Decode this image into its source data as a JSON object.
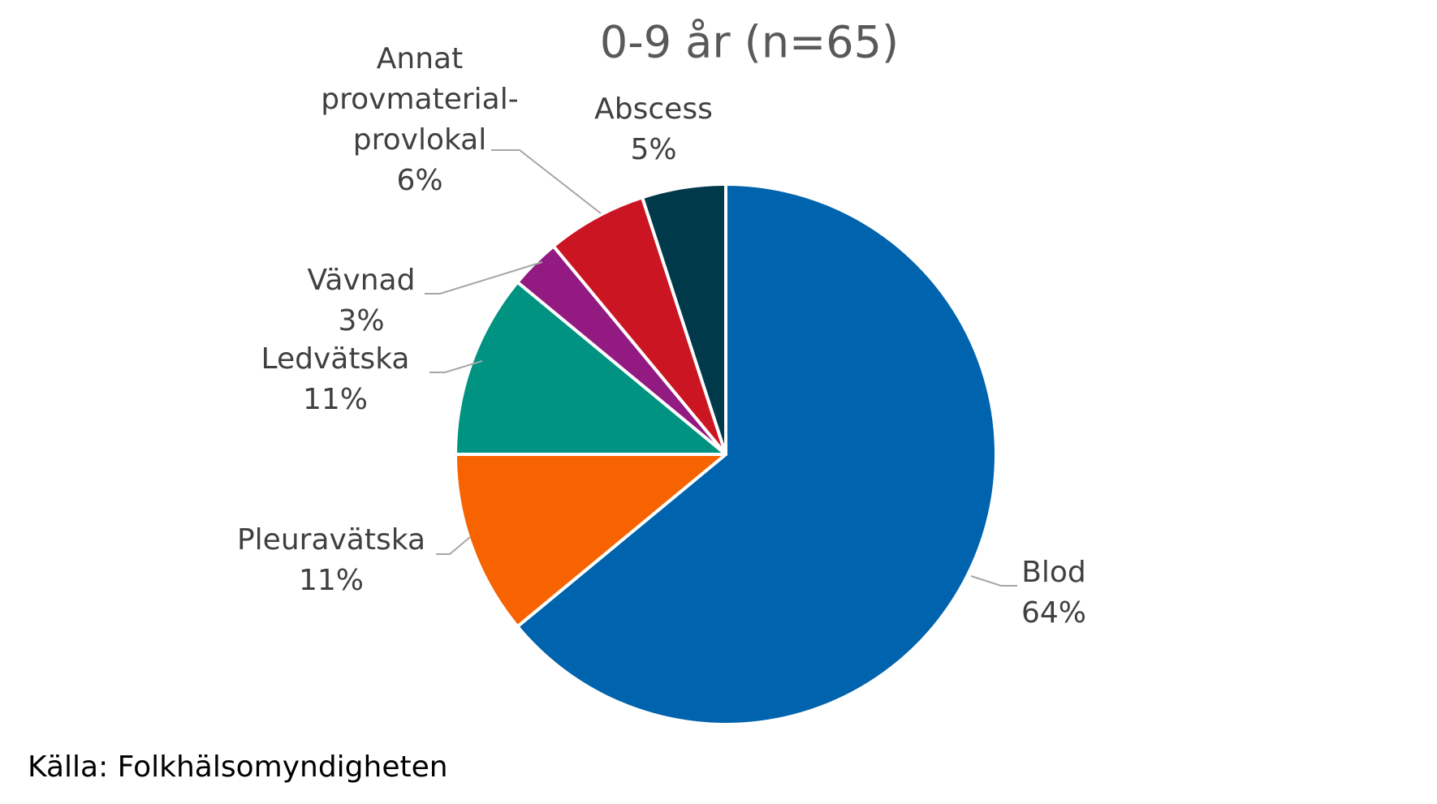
{
  "chart_data": {
    "type": "pie",
    "title": "0-9 år (n=65)",
    "categories": [
      "Blod",
      "Pleuravätska",
      "Ledvätska",
      "Vävnad",
      "Annat provmaterial-provlokal",
      "Abscess"
    ],
    "values": [
      64,
      11,
      11,
      3,
      6,
      5
    ],
    "value_labels": [
      "64%",
      "11%",
      "11%",
      "3%",
      "6%",
      "5%"
    ],
    "colors": [
      "#0063ad",
      "#f76300",
      "#009382",
      "#921a80",
      "#cc1523",
      "#003a4a"
    ],
    "source": "Källa: Folkhälsomyndigheten"
  }
}
